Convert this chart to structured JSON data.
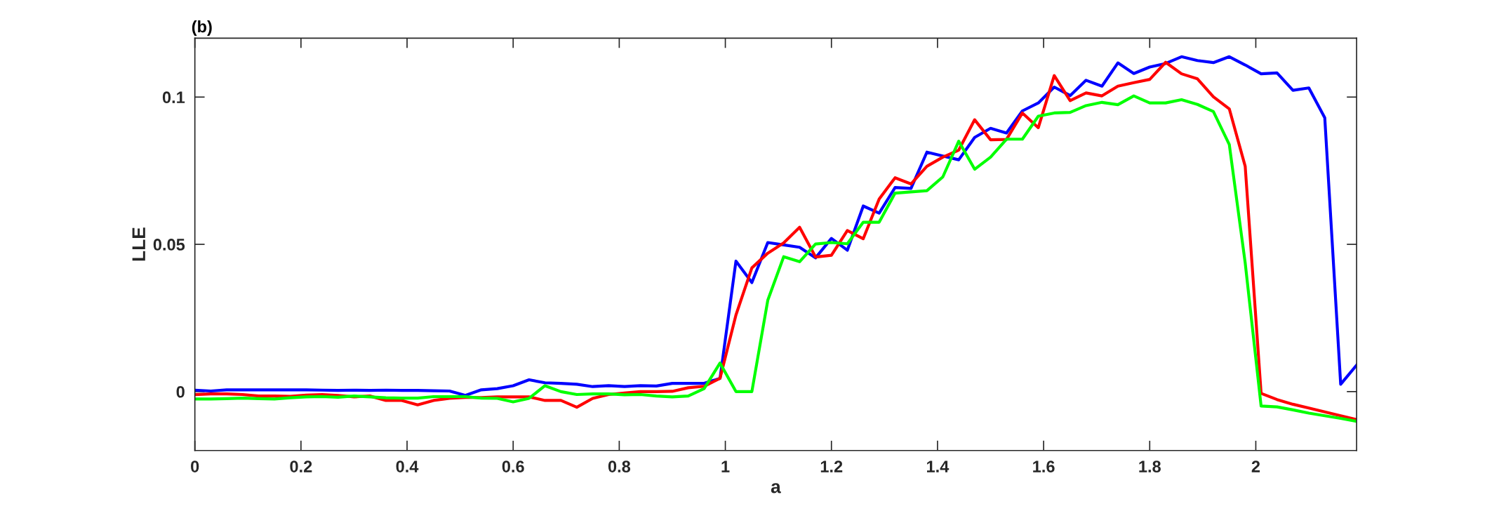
{
  "chart_data": {
    "type": "line",
    "title": "(b)",
    "xlabel": "a",
    "ylabel": "LLE",
    "x": [
      0,
      0.03,
      0.06,
      0.09,
      0.12,
      0.15,
      0.18,
      0.21,
      0.24,
      0.27,
      0.3,
      0.33,
      0.36,
      0.39,
      0.42,
      0.45,
      0.48,
      0.51,
      0.54,
      0.57,
      0.6,
      0.63,
      0.66,
      0.69,
      0.72,
      0.75,
      0.78,
      0.81,
      0.84,
      0.87,
      0.9,
      0.93,
      0.96,
      0.99,
      1.02,
      1.05,
      1.08,
      1.11,
      1.14,
      1.17,
      1.2,
      1.23,
      1.26,
      1.29,
      1.32,
      1.35,
      1.38,
      1.41,
      1.44,
      1.47,
      1.5,
      1.53,
      1.56,
      1.59,
      1.62,
      1.65,
      1.68,
      1.71,
      1.74,
      1.77,
      1.8,
      1.83,
      1.86,
      1.89,
      1.92,
      1.95,
      1.98,
      2.01,
      2.04,
      2.07,
      2.1,
      2.13,
      2.16,
      2.19
    ],
    "series": [
      {
        "color": "#0000ff",
        "values": [
          0.0005,
          0.0002,
          0.0006,
          0.0006,
          0.0006,
          0.0006,
          0.0006,
          0.0006,
          0.0005,
          0.0004,
          0.0005,
          0.0004,
          0.0005,
          0.0004,
          0.0004,
          0.0003,
          0.0002,
          -0.0013,
          0.0006,
          0.001,
          0.002,
          0.004,
          0.003,
          0.0028,
          0.0025,
          0.0017,
          0.002,
          0.0017,
          0.002,
          0.0019,
          0.0028,
          0.0028,
          0.0028,
          0.0045,
          0.0443,
          0.037,
          0.0506,
          0.0498,
          0.049,
          0.0454,
          0.052,
          0.048,
          0.063,
          0.0606,
          0.0693,
          0.069,
          0.0813,
          0.08,
          0.0787,
          0.0863,
          0.0894,
          0.0878,
          0.0953,
          0.098,
          0.1034,
          0.1005,
          0.1057,
          0.1037,
          0.1116,
          0.108,
          0.1102,
          0.1114,
          0.1137,
          0.1124,
          0.1117,
          0.1137,
          0.1109,
          0.1079,
          0.1082,
          0.1023,
          0.1031,
          0.093,
          0.0025,
          0.009
        ]
      },
      {
        "color": "#ff0000",
        "values": [
          -0.001,
          -0.0008,
          -0.0008,
          -0.001,
          -0.0015,
          -0.0015,
          -0.0016,
          -0.0012,
          -0.001,
          -0.0013,
          -0.0018,
          -0.0015,
          -0.003,
          -0.003,
          -0.0045,
          -0.003,
          -0.0023,
          -0.002,
          -0.002,
          -0.0018,
          -0.0018,
          -0.0018,
          -0.003,
          -0.003,
          -0.0053,
          -0.0023,
          -0.001,
          -0.0005,
          0,
          0,
          0.0001,
          0.0013,
          0.0018,
          0.0045,
          0.026,
          0.042,
          0.047,
          0.0505,
          0.0558,
          0.0457,
          0.0463,
          0.0547,
          0.0519,
          0.0654,
          0.0726,
          0.0705,
          0.0765,
          0.0796,
          0.082,
          0.0923,
          0.0855,
          0.0856,
          0.0946,
          0.0896,
          0.1073,
          0.0988,
          0.1014,
          0.1004,
          0.1037,
          0.1049,
          0.106,
          0.1118,
          0.1079,
          0.1062,
          0.1001,
          0.096,
          0.0765,
          -0.0006,
          -0.0027,
          -0.0043,
          -0.0056,
          -0.0069,
          -0.0082,
          -0.0095
        ]
      },
      {
        "color": "#00ff00",
        "values": [
          -0.0025,
          -0.0025,
          -0.0024,
          -0.0022,
          -0.0024,
          -0.0025,
          -0.0021,
          -0.0018,
          -0.0017,
          -0.0019,
          -0.0015,
          -0.0018,
          -0.0021,
          -0.0022,
          -0.0022,
          -0.0017,
          -0.0017,
          -0.0017,
          -0.0022,
          -0.0023,
          -0.0035,
          -0.0023,
          0.002,
          0,
          -0.001,
          -0.0008,
          -0.0008,
          -0.0011,
          -0.001,
          -0.0015,
          -0.0018,
          -0.0015,
          0.001,
          0.0097,
          0,
          0,
          0.031,
          0.0458,
          0.0441,
          0.0501,
          0.0506,
          0.0502,
          0.0575,
          0.0575,
          0.0674,
          0.0678,
          0.0682,
          0.0729,
          0.085,
          0.0755,
          0.0796,
          0.0857,
          0.0857,
          0.0935,
          0.0946,
          0.0948,
          0.0971,
          0.0982,
          0.0974,
          0.1004,
          0.098,
          0.098,
          0.0991,
          0.0975,
          0.0951,
          0.0839,
          0.0437,
          -0.0049,
          -0.0052,
          -0.0062,
          -0.0073,
          -0.0082,
          -0.0091,
          -0.0101
        ]
      }
    ],
    "xlim": [
      0,
      2.19
    ],
    "xticks": [
      0,
      0.2,
      0.4,
      0.6,
      0.8,
      1,
      1.2,
      1.4,
      1.6,
      1.8,
      2
    ],
    "ylim": [
      -0.02,
      0.12
    ],
    "yticks": [
      0,
      0.05,
      0.1
    ],
    "grid": false,
    "marker": "none",
    "line_style": "solid"
  }
}
